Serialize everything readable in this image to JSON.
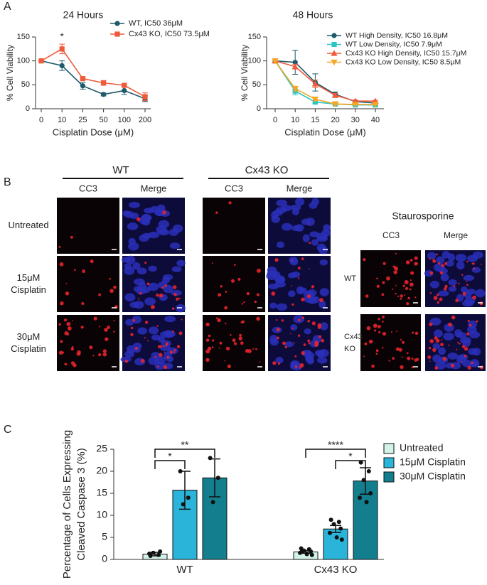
{
  "panel_labels": [
    "A",
    "B",
    "C"
  ],
  "chart_data": [
    {
      "type": "line",
      "title": "24 Hours",
      "x_label": "Cisplatin Dose (μM)",
      "y_label": "% Cell Viability",
      "categories": [
        "0",
        "10",
        "25",
        "50",
        "100",
        "200"
      ],
      "series": [
        {
          "name": "WT,  IC50 36μM",
          "color": "#1d5a6b",
          "marker": "circle",
          "values": [
            100,
            90,
            48,
            30,
            38,
            21
          ],
          "errors": [
            0,
            10,
            7,
            3,
            8,
            6
          ]
        },
        {
          "name": "Cx43 KO, IC50 73.5μM",
          "color": "#f05a3a",
          "marker": "square",
          "values": [
            100,
            125,
            63,
            54,
            49,
            25
          ],
          "errors": [
            0,
            10,
            3,
            5,
            2,
            8
          ]
        }
      ],
      "ylim": [
        0,
        150
      ],
      "yticks": [
        0,
        50,
        100,
        150
      ],
      "annotations": [
        {
          "text": "*",
          "x": "10"
        }
      ]
    },
    {
      "type": "line",
      "title": "48 Hours",
      "x_label": "Cisplatin Dose (μM)",
      "y_label": "% Cell Viability",
      "categories": [
        "0",
        "10",
        "15",
        "20",
        "30",
        "40"
      ],
      "series": [
        {
          "name": "WT High Density, IC50 16.8μM",
          "color": "#1d5a6b",
          "marker": "circle",
          "values": [
            100,
            97,
            55,
            30,
            15,
            12
          ],
          "errors": [
            0,
            25,
            18,
            5,
            2,
            2
          ]
        },
        {
          "name": "WT Low Density, IC50 7.9μM",
          "color": "#2ec4c4",
          "marker": "square",
          "values": [
            100,
            37,
            14,
            10,
            8,
            8
          ],
          "errors": [
            0,
            8,
            3,
            2,
            1,
            1
          ]
        },
        {
          "name": "Cx43 KO High Density, IC50 15.7μM",
          "color": "#f05a3a",
          "marker": "triangle",
          "values": [
            100,
            88,
            52,
            28,
            16,
            16
          ],
          "errors": [
            0,
            5,
            8,
            4,
            2,
            2
          ]
        },
        {
          "name": "Cx43 KO Low Density, IC50 8.5μM",
          "color": "#f5a623",
          "marker": "triangle-down",
          "values": [
            100,
            42,
            20,
            10,
            9,
            9
          ],
          "errors": [
            0,
            5,
            3,
            2,
            1,
            1
          ]
        }
      ],
      "ylim": [
        0,
        150
      ],
      "yticks": [
        0,
        50,
        100,
        150
      ]
    },
    {
      "type": "bar",
      "y_label": [
        "Percentage of Cells Expressing",
        "Cleaved Caspase 3 (%)"
      ],
      "categories": [
        "WT",
        "Cx43 KO"
      ],
      "series": [
        {
          "name": "Untreated",
          "color": "#d3f3ea",
          "values": [
            1.2,
            1.7
          ],
          "errors": [
            0.4,
            0.3
          ],
          "points": [
            [
              0.8,
              1.0,
              1.5,
              1.8,
              1.3
            ],
            [
              2.5,
              2.3,
              2.0,
              1.8,
              1.5,
              1.2,
              1.0,
              1.8
            ]
          ]
        },
        {
          "name": "15μM Cisplatin",
          "color": "#2ab4d9",
          "values": [
            15.7,
            6.9
          ],
          "errors": [
            4.3,
            0.8
          ],
          "points": [
            [
              20,
              14,
              12.5
            ],
            [
              9,
              8.5,
              8,
              7,
              6,
              5,
              4.5
            ]
          ]
        },
        {
          "name": "30μM Cisplatin",
          "color": "#137f8e",
          "values": [
            18.5,
            17.8
          ],
          "errors": [
            4.3,
            3.0
          ],
          "points": [
            [
              23,
              18.5,
              13
            ],
            [
              22,
              20,
              18,
              15,
              14,
              13
            ]
          ]
        }
      ],
      "ylim": [
        0,
        25
      ],
      "yticks": [
        0,
        5,
        10,
        15,
        20,
        25
      ],
      "significance": [
        "*",
        "**",
        "****",
        "*"
      ]
    }
  ],
  "micrographs": {
    "groups": [
      {
        "title": "WT",
        "columns": [
          "CC3",
          "Merge"
        ]
      },
      {
        "title": "Cx43 KO",
        "columns": [
          "CC3",
          "Merge"
        ]
      }
    ],
    "rows": [
      [
        "Untreated"
      ],
      [
        "15μM",
        "Cisplatin"
      ],
      [
        "30μM",
        "Cisplatin"
      ]
    ],
    "staurosporine": {
      "title": "Staurosporine",
      "columns": [
        "CC3",
        "Merge"
      ],
      "rows": [
        [
          "WT"
        ],
        [
          "Cx43",
          "KO"
        ]
      ]
    }
  }
}
